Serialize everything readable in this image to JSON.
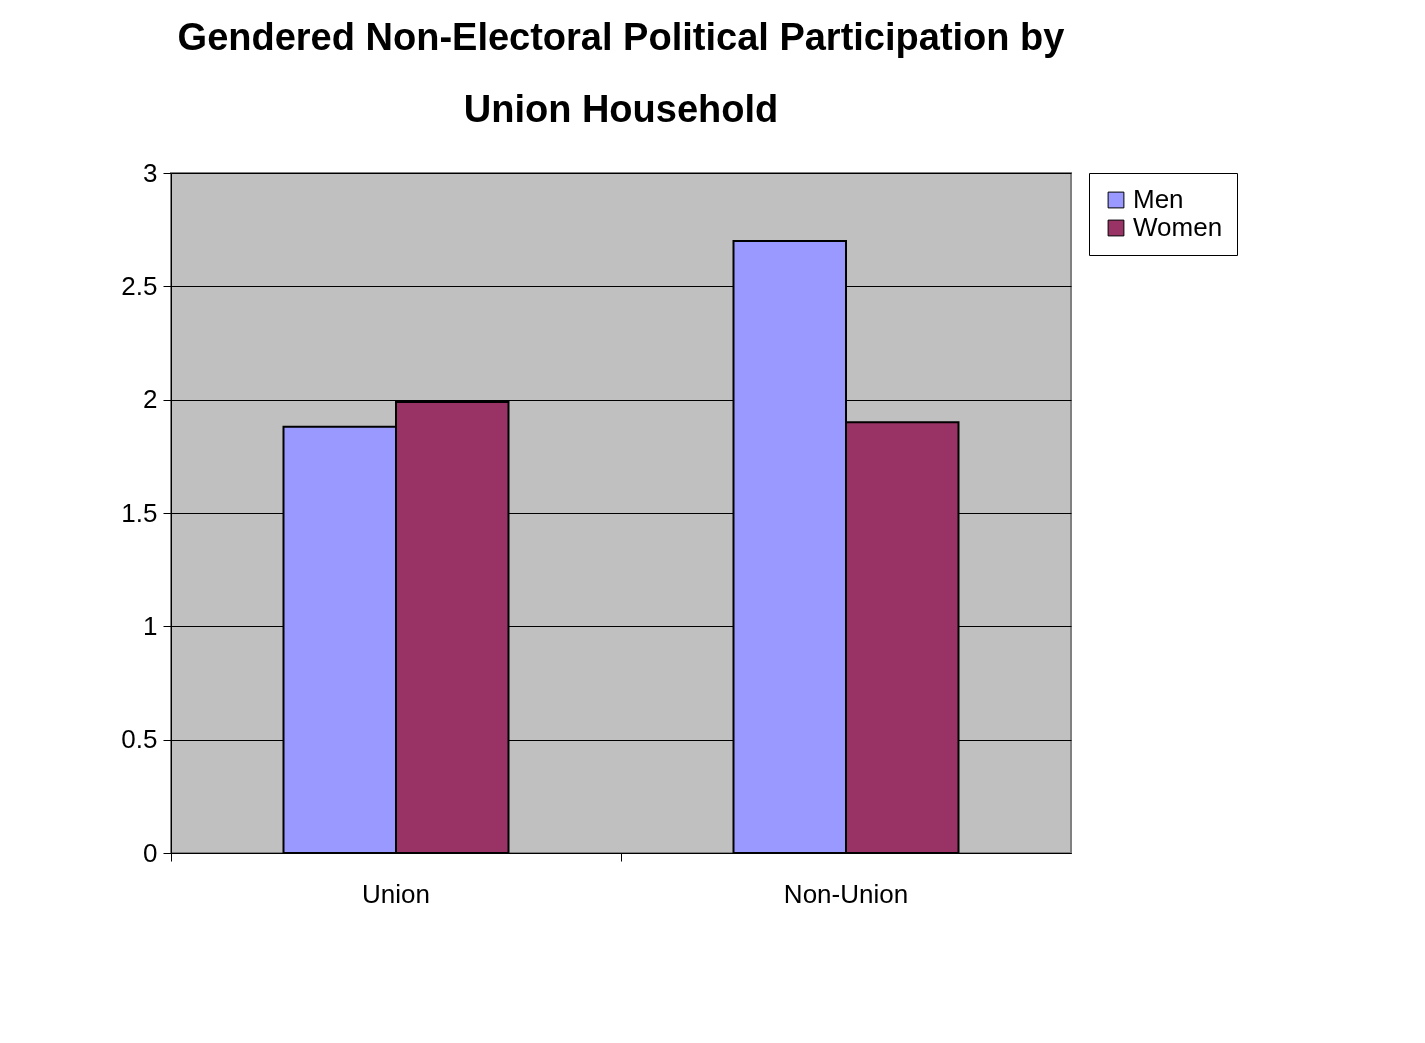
{
  "chart_data": {
    "type": "bar",
    "title": "Gendered Non-Electoral Political Participation by Union Household",
    "categories": [
      "Union",
      "Non-Union"
    ],
    "series": [
      {
        "name": "Men",
        "color": "#9999ff",
        "values": [
          1.88,
          2.7
        ]
      },
      {
        "name": "Women",
        "color": "#993366",
        "values": [
          1.99,
          1.9
        ]
      }
    ],
    "ylim": [
      0,
      3
    ],
    "yticks": [
      0,
      0.5,
      1,
      1.5,
      2,
      2.5,
      3
    ],
    "grid": "y",
    "legend": "right"
  }
}
